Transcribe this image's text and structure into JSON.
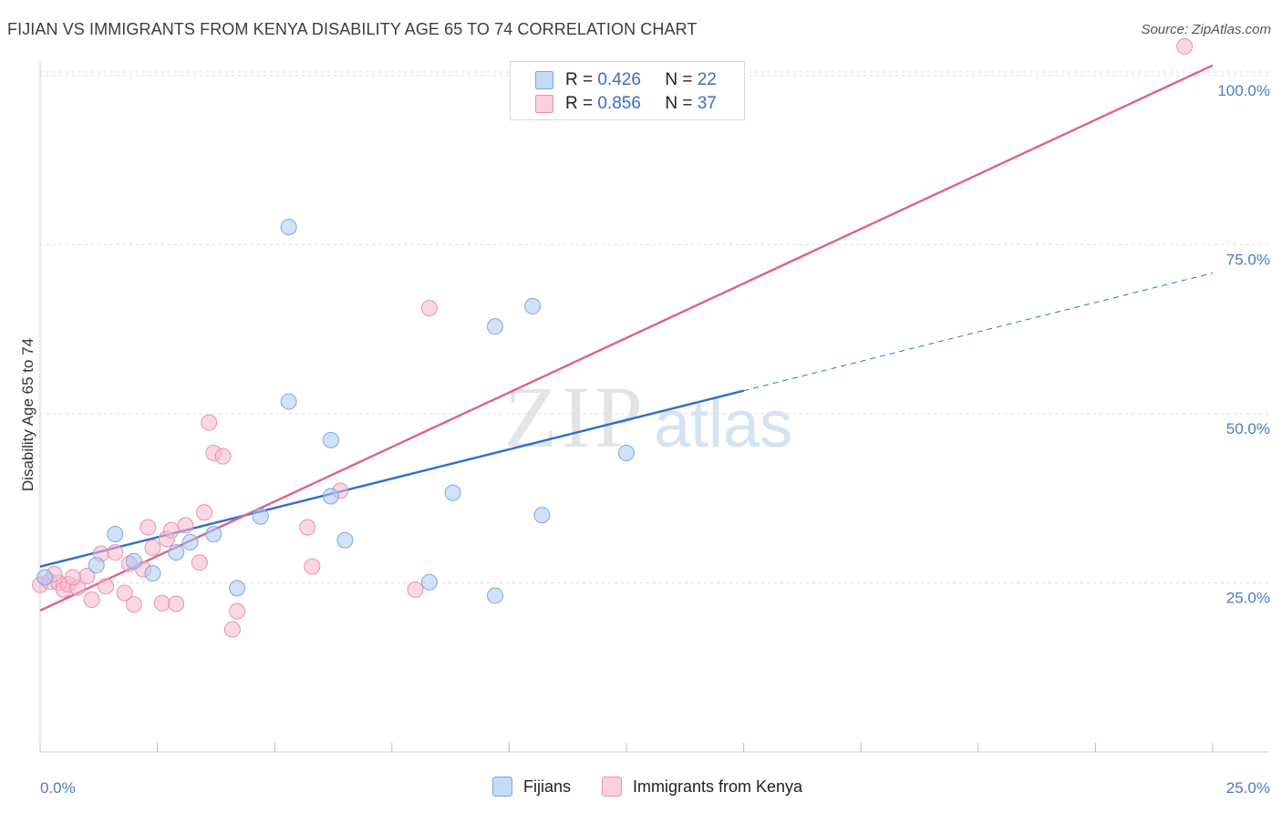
{
  "header": {
    "title": "FIJIAN VS IMMIGRANTS FROM KENYA DISABILITY AGE 65 TO 74 CORRELATION CHART",
    "source": "Source: ZipAtlas.com"
  },
  "watermark": {
    "zip": "ZIP",
    "atlas": "atlas"
  },
  "legend": {
    "rows": [
      {
        "r_label": "R =",
        "r_value": "0.426",
        "n_label": "N =",
        "n_value": "22",
        "color": "#a9c8f2"
      },
      {
        "r_label": "R =",
        "r_value": "0.856",
        "n_label": "N =",
        "n_value": "37",
        "color": "#f6b8cc"
      }
    ]
  },
  "bottom_legend": {
    "fijians": "Fijians",
    "kenya": "Immigrants from Kenya"
  },
  "colors": {
    "blue_fill": "#a9c8f2",
    "blue_stroke": "#7fa8de",
    "blue_line": "#2f6fcc",
    "pink_fill": "#f6b8cc",
    "pink_stroke": "#ec8fae",
    "pink_line": "#e0608a",
    "grid": "#dcdcdc",
    "tick_text": "#4a7cc4"
  },
  "chart_data": {
    "type": "scatter",
    "title": "FIJIAN VS IMMIGRANTS FROM KENYA DISABILITY AGE 65 TO 74 CORRELATION CHART",
    "xlabel": "",
    "ylabel": "Disability Age 65 to 74",
    "xlim": [
      0,
      25
    ],
    "ylim": [
      0,
      102
    ],
    "x_tick_labels": [
      "0.0%",
      "25.0%"
    ],
    "y_ticks": [
      25,
      50,
      75,
      100
    ],
    "y_tick_labels": [
      "25.0%",
      "50.0%",
      "75.0%",
      "100.0%"
    ],
    "grid": true,
    "legend_position": "top-center",
    "series": [
      {
        "name": "Fijians",
        "color": "#a9c8f2",
        "points": [
          [
            0.1,
            25.8
          ],
          [
            1.2,
            27.6
          ],
          [
            1.6,
            32.2
          ],
          [
            2.0,
            28.2
          ],
          [
            2.4,
            26.4
          ],
          [
            2.9,
            29.5
          ],
          [
            3.2,
            31.0
          ],
          [
            3.7,
            32.2
          ],
          [
            4.2,
            24.2
          ],
          [
            4.7,
            34.8
          ],
          [
            5.3,
            77.6
          ],
          [
            5.3,
            51.8
          ],
          [
            6.2,
            37.8
          ],
          [
            6.5,
            31.3
          ],
          [
            8.3,
            25.1
          ],
          [
            8.8,
            38.3
          ],
          [
            9.7,
            23.1
          ],
          [
            9.7,
            62.9
          ],
          [
            10.5,
            65.9
          ],
          [
            10.7,
            35.0
          ],
          [
            12.5,
            44.2
          ],
          [
            6.2,
            46.1
          ]
        ],
        "trend": {
          "x0": 0,
          "y0": 27.4,
          "x1": 15.0,
          "y1": 53.4,
          "dashed_to_x": 25.0,
          "dashed_to_y": 70.8
        }
      },
      {
        "name": "Immigrants from Kenya",
        "color": "#f6b8cc",
        "points": [
          [
            0.0,
            24.7
          ],
          [
            0.2,
            25.2
          ],
          [
            0.4,
            25.0
          ],
          [
            0.5,
            24.0
          ],
          [
            0.6,
            24.8
          ],
          [
            0.8,
            24.3
          ],
          [
            1.0,
            26.0
          ],
          [
            1.1,
            22.5
          ],
          [
            1.3,
            29.3
          ],
          [
            1.4,
            24.5
          ],
          [
            1.6,
            29.5
          ],
          [
            1.8,
            23.5
          ],
          [
            2.0,
            21.8
          ],
          [
            2.2,
            27.0
          ],
          [
            2.3,
            33.2
          ],
          [
            2.4,
            30.2
          ],
          [
            2.6,
            22.0
          ],
          [
            2.7,
            31.5
          ],
          [
            2.8,
            32.8
          ],
          [
            2.9,
            21.9
          ],
          [
            3.1,
            33.5
          ],
          [
            3.4,
            28.0
          ],
          [
            3.5,
            35.4
          ],
          [
            3.6,
            48.7
          ],
          [
            3.7,
            44.2
          ],
          [
            3.9,
            43.7
          ],
          [
            4.1,
            18.1
          ],
          [
            4.2,
            20.8
          ],
          [
            5.7,
            33.2
          ],
          [
            5.8,
            27.4
          ],
          [
            6.4,
            38.6
          ],
          [
            8.0,
            24.0
          ],
          [
            8.3,
            65.6
          ],
          [
            24.4,
            104.3
          ],
          [
            0.3,
            26.3
          ],
          [
            0.7,
            25.8
          ],
          [
            1.9,
            27.8
          ]
        ],
        "trend": {
          "x0": 0,
          "y0": 20.9,
          "x1": 25.0,
          "y1": 101.5
        }
      }
    ]
  }
}
